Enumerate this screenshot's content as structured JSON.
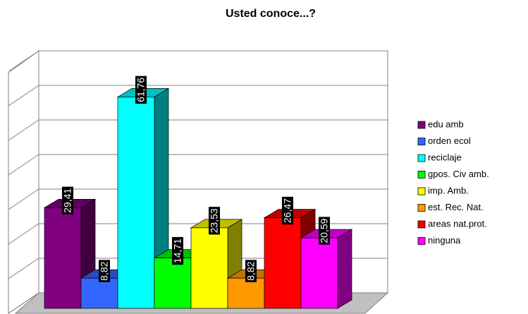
{
  "chart_data": {
    "type": "bar3d",
    "title": "Usted conoce...?",
    "categories": [
      "edu amb",
      "orden ecol",
      "reciclaje",
      "gpos. Civ amb.",
      "imp. Amb.",
      "est. Rec. Nat.",
      "areas nat.prot.",
      "ninguna"
    ],
    "values": [
      29.41,
      8.82,
      61.76,
      14.71,
      23.53,
      8.82,
      26.47,
      20.59
    ],
    "value_labels": [
      "29,41",
      "8,82",
      "61,76",
      "14,71",
      "23,53",
      "8,82",
      "26,47",
      "20,59"
    ],
    "colors": [
      "#800080",
      "#3366ff",
      "#00ffff",
      "#00ff00",
      "#ffff00",
      "#ff9900",
      "#ff0000",
      "#ff00ff"
    ],
    "ylim": [
      0,
      70
    ],
    "yticks": [
      0,
      10,
      20,
      30,
      40,
      50,
      60,
      70
    ],
    "grid": true,
    "legend": "right"
  }
}
